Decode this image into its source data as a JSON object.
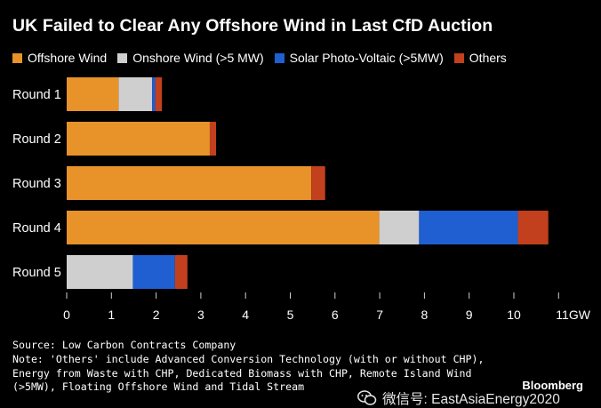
{
  "title": "UK Failed to Clear Any Offshore Wind in Last CfD Auction",
  "colors": {
    "offshore": "#e8922a",
    "onshore": "#cfcfcf",
    "solar": "#1f5fd1",
    "others": "#c2401e"
  },
  "legend": [
    {
      "label": "Offshore Wind",
      "color": "#e8922a"
    },
    {
      "label": "Onshore Wind (>5 MW)",
      "color": "#cfcfcf"
    },
    {
      "label": "Solar Photo-Voltaic (>5MW)",
      "color": "#1f5fd1"
    },
    {
      "label": "Others",
      "color": "#c2401e"
    }
  ],
  "chart_data": {
    "type": "bar",
    "orientation": "horizontal",
    "stacked": true,
    "categories": [
      "Round 1",
      "Round 2",
      "Round 3",
      "Round 4",
      "Round 5"
    ],
    "series": [
      {
        "name": "Offshore Wind",
        "values": [
          1.16,
          3.2,
          5.47,
          6.99,
          0
        ]
      },
      {
        "name": "Onshore Wind (>5 MW)",
        "values": [
          0.75,
          0,
          0,
          0.89,
          1.48
        ]
      },
      {
        "name": "Solar Photo-Voltaic (>5MW)",
        "values": [
          0.07,
          0,
          0,
          2.21,
          0.94
        ]
      },
      {
        "name": "Others",
        "values": [
          0.15,
          0.14,
          0.31,
          0.68,
          0.28
        ]
      }
    ],
    "xlim": [
      0,
      11
    ],
    "xticks": [
      "0",
      "1",
      "2",
      "3",
      "4",
      "5",
      "6",
      "7",
      "8",
      "9",
      "10",
      "11GW"
    ],
    "grid": false,
    "legend_position": "top"
  },
  "notes": [
    "Source: Low Carbon Contracts Company",
    "Note: 'Others' include Advanced Conversion Technology (with or without CHP),",
    "Energy from Waste with CHP, Dedicated Biomass with CHP, Remote Island Wind",
    "(>5MW), Floating Offshore Wind and Tidal Stream"
  ],
  "brand": "Bloomberg",
  "watermark": "微信号: EastAsiaEnergy2020"
}
